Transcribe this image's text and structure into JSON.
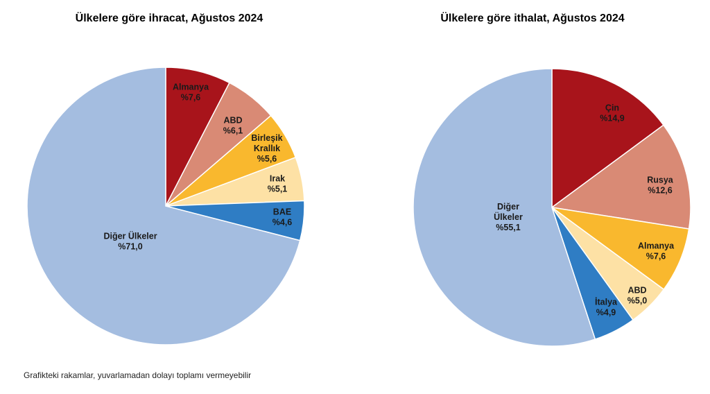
{
  "footnote": "Grafikteki rakamlar, yuvarlamadan dolayı toplamı vermeyebilir",
  "chart_data": [
    {
      "type": "pie",
      "title": "Ülkelere göre ihracat, Ağustos 2024",
      "slices": [
        {
          "label": [
            "Almanya"
          ],
          "value": 7.6,
          "value_label": "%7,6",
          "color": "#a8141b"
        },
        {
          "label": [
            "ABD"
          ],
          "value": 6.1,
          "value_label": "%6,1",
          "color": "#d98a75"
        },
        {
          "label": [
            "Birleşik",
            "Krallık"
          ],
          "value": 5.6,
          "value_label": "%5,6",
          "color": "#f9b82e"
        },
        {
          "label": [
            "Irak"
          ],
          "value": 5.1,
          "value_label": "%5,1",
          "color": "#fde1a5"
        },
        {
          "label": [
            "BAE"
          ],
          "value": 4.6,
          "value_label": "%4,6",
          "color": "#2f7dc4"
        },
        {
          "label": [
            "Diğer Ülkeler"
          ],
          "value": 71.0,
          "value_label": "%71,0",
          "color": "#a4bde0"
        }
      ]
    },
    {
      "type": "pie",
      "title": "Ülkelere göre ithalat, Ağustos 2024",
      "slices": [
        {
          "label": [
            "Çin"
          ],
          "value": 14.9,
          "value_label": "%14,9",
          "color": "#a8141b"
        },
        {
          "label": [
            "Rusya"
          ],
          "value": 12.6,
          "value_label": "%12,6",
          "color": "#d98a75"
        },
        {
          "label": [
            "Almanya"
          ],
          "value": 7.6,
          "value_label": "%7,6",
          "color": "#f9b82e"
        },
        {
          "label": [
            "ABD"
          ],
          "value": 5.0,
          "value_label": "%5,0",
          "color": "#fde1a5"
        },
        {
          "label": [
            "İtalya"
          ],
          "value": 4.9,
          "value_label": "%4,9",
          "color": "#2f7dc4"
        },
        {
          "label": [
            "Diğer",
            "Ülkeler"
          ],
          "value": 55.1,
          "value_label": "%55,1",
          "color": "#a4bde0"
        }
      ]
    }
  ]
}
